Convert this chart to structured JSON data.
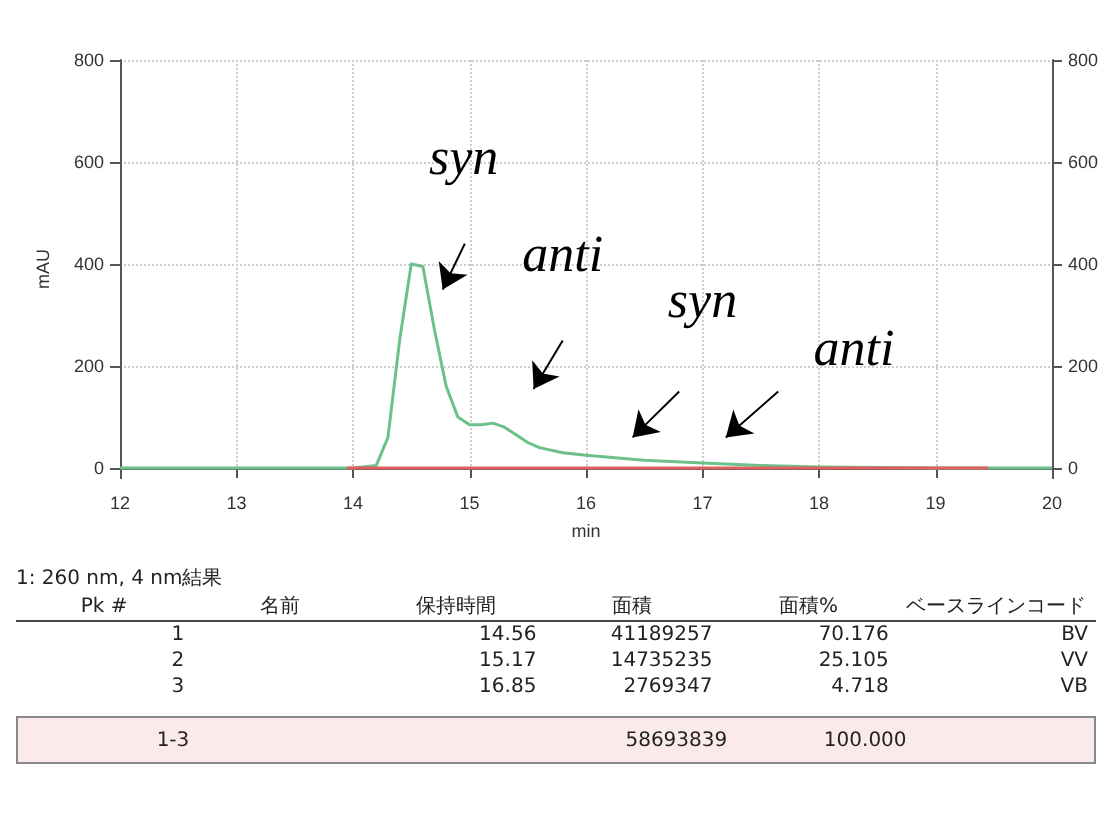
{
  "chart_data": {
    "type": "line",
    "xlabel": "min",
    "ylabel": "mAU",
    "xlim": [
      12,
      20
    ],
    "xticks": [
      12,
      13,
      14,
      15,
      16,
      17,
      18,
      19,
      20
    ],
    "ylim": [
      -20,
      800
    ],
    "yticks": [
      0,
      200,
      400,
      600,
      800
    ],
    "y2lim": [
      -20,
      800
    ],
    "y2ticks": [
      0,
      200,
      400,
      600,
      800
    ],
    "grid": true,
    "marker": "none",
    "line_style": "solid",
    "series": [
      {
        "color": "#6cc08a",
        "x": [
          12,
          13,
          14,
          14.2,
          14.3,
          14.4,
          14.5,
          14.6,
          14.7,
          14.8,
          14.9,
          15.0,
          15.1,
          15.2,
          15.3,
          15.4,
          15.5,
          15.6,
          15.8,
          16.0,
          16.5,
          17.0,
          17.5,
          18.0,
          19.0,
          20.0
        ],
        "values": [
          0,
          0,
          0,
          5,
          60,
          250,
          400,
          395,
          270,
          160,
          100,
          85,
          85,
          88,
          80,
          65,
          50,
          40,
          30,
          25,
          15,
          10,
          5,
          2,
          0,
          0
        ]
      },
      {
        "color": "#e06060",
        "x": [
          13.95,
          19.45
        ],
        "values": [
          0,
          0
        ]
      }
    ],
    "annotations": [
      "syn",
      "anti",
      "syn",
      "anti",
      "1: 260 nm, 4 nm結果",
      "Pk #",
      "名前",
      "保持時間",
      "面積",
      "面積%",
      "ベースラインコード",
      "1",
      "14.56",
      "41189257",
      "70.176",
      "BV",
      "2",
      "15.17",
      "14735235",
      "25.105",
      "VV",
      "3",
      "16.85",
      "2769347",
      "4.718",
      "VB",
      "1-3",
      "58693839",
      "100.000"
    ]
  }
}
